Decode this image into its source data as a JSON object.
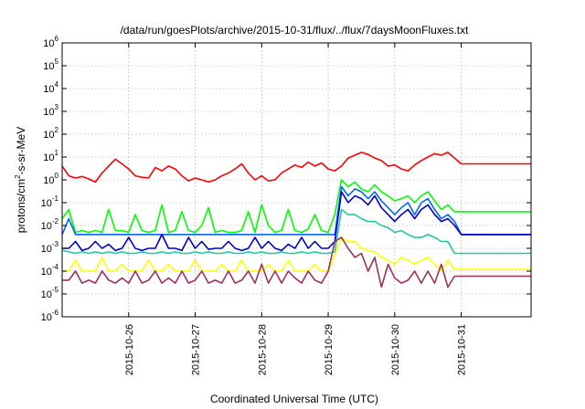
{
  "chart_data": {
    "type": "line",
    "title": "/data/run/goesPlots/archive/2015-10-31/flux/../flux/7daysMoonFluxes.txt",
    "xlabel": "Coordinated Universal Time (UTC)",
    "ylabel_parts": {
      "before": "protons/cm",
      "sup": "2",
      "after": "-s-sr-MeV"
    },
    "x_ticks": [
      "2015-10-26",
      "2015-10-27",
      "2015-10-28",
      "2015-10-29",
      "2015-10-30",
      "2015-10-31"
    ],
    "x_tick_positions": [
      1,
      2,
      3,
      4,
      5,
      6
    ],
    "xlim": [
      0.0,
      7.05
    ],
    "y_scale": "log",
    "ylim": [
      1e-06,
      1000000.0
    ],
    "y_ticks": [
      {
        "base": "10",
        "exp": "-6"
      },
      {
        "base": "10",
        "exp": "-5"
      },
      {
        "base": "10",
        "exp": "-4"
      },
      {
        "base": "10",
        "exp": "-3"
      },
      {
        "base": "10",
        "exp": "-2"
      },
      {
        "base": "10",
        "exp": "-1"
      },
      {
        "base": "10",
        "exp": "0"
      },
      {
        "base": "10",
        "exp": "1"
      },
      {
        "base": "10",
        "exp": "2"
      },
      {
        "base": "10",
        "exp": "3"
      },
      {
        "base": "10",
        "exp": "4"
      },
      {
        "base": "10",
        "exp": "5"
      },
      {
        "base": "10",
        "exp": "6"
      }
    ],
    "grid": true,
    "series": [
      {
        "color": "#ff0000",
        "x": [
          0.0,
          0.1,
          0.2,
          0.3,
          0.4,
          0.5,
          0.6,
          0.7,
          0.8,
          0.9,
          1.0,
          1.1,
          1.2,
          1.3,
          1.4,
          1.5,
          1.6,
          1.7,
          1.8,
          1.9,
          2.0,
          2.1,
          2.2,
          2.3,
          2.4,
          2.5,
          2.6,
          2.7,
          2.8,
          2.9,
          3.0,
          3.1,
          3.2,
          3.3,
          3.4,
          3.5,
          3.6,
          3.7,
          3.8,
          3.9,
          4.0,
          4.1,
          4.2,
          4.3,
          4.4,
          4.5,
          4.6,
          4.7,
          4.8,
          4.9,
          5.0,
          5.1,
          5.2,
          5.3,
          5.4,
          5.5,
          5.6,
          5.7,
          5.8,
          5.9,
          6.0,
          7.05
        ],
        "y": [
          4.0,
          1.5,
          1.2,
          1.4,
          1.1,
          0.8,
          2.0,
          4.0,
          8.0,
          5.0,
          3.0,
          1.5,
          1.3,
          1.2,
          3.5,
          2.5,
          4.0,
          3.0,
          1.5,
          0.9,
          1.2,
          1.0,
          0.8,
          1.0,
          1.5,
          2.0,
          3.0,
          5.0,
          2.0,
          1.0,
          1.5,
          0.9,
          1.0,
          2.0,
          3.0,
          4.5,
          3.5,
          6.0,
          4.0,
          5.5,
          3.0,
          2.5,
          4.0,
          9.0,
          12.0,
          16.0,
          13.0,
          9.0,
          7.0,
          4.0,
          4.5,
          3.0,
          2.5,
          4.5,
          7.0,
          10.0,
          14.0,
          12.0,
          16.0,
          9.0,
          5.0,
          5.0
        ]
      },
      {
        "color": "#00ff00",
        "x": [
          0.0,
          0.1,
          0.2,
          0.3,
          0.4,
          0.5,
          0.6,
          0.7,
          0.8,
          0.9,
          1.0,
          1.1,
          1.2,
          1.3,
          1.4,
          1.5,
          1.6,
          1.7,
          1.8,
          1.9,
          2.0,
          2.1,
          2.2,
          2.3,
          2.4,
          2.5,
          2.6,
          2.7,
          2.8,
          2.9,
          3.0,
          3.1,
          3.2,
          3.3,
          3.4,
          3.5,
          3.6,
          3.7,
          3.8,
          3.9,
          4.0,
          4.1,
          4.2,
          4.3,
          4.4,
          4.5,
          4.6,
          4.7,
          4.8,
          4.9,
          5.0,
          5.1,
          5.2,
          5.3,
          5.4,
          5.5,
          5.6,
          5.7,
          5.8,
          5.9,
          6.0,
          7.05
        ],
        "y": [
          0.02,
          0.05,
          0.005,
          0.006,
          0.005,
          0.006,
          0.005,
          0.05,
          0.006,
          0.006,
          0.005,
          0.03,
          0.006,
          0.005,
          0.006,
          0.08,
          0.005,
          0.006,
          0.04,
          0.006,
          0.005,
          0.01,
          0.06,
          0.005,
          0.006,
          0.005,
          0.005,
          0.006,
          0.04,
          0.005,
          0.08,
          0.01,
          0.005,
          0.006,
          0.05,
          0.006,
          0.005,
          0.007,
          0.03,
          0.006,
          0.005,
          0.03,
          1.0,
          0.5,
          0.8,
          0.4,
          0.3,
          0.6,
          0.3,
          0.2,
          0.12,
          0.15,
          0.2,
          0.1,
          0.2,
          0.3,
          0.12,
          0.05,
          0.08,
          0.04,
          0.04,
          0.04
        ]
      },
      {
        "color": "#0066ff",
        "x": [
          0.0,
          0.1,
          0.2,
          0.3,
          0.4,
          0.5,
          0.6,
          0.7,
          0.8,
          0.9,
          1.0,
          1.1,
          1.2,
          1.3,
          1.4,
          1.5,
          1.6,
          1.7,
          1.8,
          1.9,
          2.0,
          2.1,
          2.2,
          2.3,
          2.4,
          2.5,
          2.6,
          2.7,
          2.8,
          2.9,
          3.0,
          3.1,
          3.2,
          3.3,
          3.4,
          3.5,
          3.6,
          3.7,
          3.8,
          3.9,
          4.0,
          4.1,
          4.2,
          4.3,
          4.4,
          4.5,
          4.6,
          4.7,
          4.8,
          4.9,
          5.0,
          5.1,
          5.2,
          5.3,
          5.4,
          5.5,
          5.6,
          5.7,
          5.8,
          5.9,
          6.0,
          7.05
        ],
        "y": [
          0.004,
          0.02,
          0.004,
          0.004,
          0.004,
          0.004,
          0.004,
          0.004,
          0.004,
          0.004,
          0.004,
          0.004,
          0.004,
          0.004,
          0.004,
          0.004,
          0.004,
          0.004,
          0.004,
          0.004,
          0.004,
          0.004,
          0.004,
          0.004,
          0.004,
          0.004,
          0.004,
          0.004,
          0.004,
          0.004,
          0.004,
          0.004,
          0.004,
          0.004,
          0.004,
          0.004,
          0.004,
          0.004,
          0.004,
          0.004,
          0.004,
          0.004,
          0.5,
          0.2,
          0.4,
          0.3,
          0.15,
          0.3,
          0.12,
          0.06,
          0.03,
          0.06,
          0.1,
          0.03,
          0.1,
          0.15,
          0.05,
          0.02,
          0.03,
          0.015,
          0.004,
          0.004
        ]
      },
      {
        "color": "#0000cc",
        "x": [
          0.0,
          0.1,
          0.2,
          0.3,
          0.4,
          0.5,
          0.6,
          0.7,
          0.8,
          0.9,
          1.0,
          1.1,
          1.2,
          1.3,
          1.4,
          1.5,
          1.6,
          1.7,
          1.8,
          1.9,
          2.0,
          2.1,
          2.2,
          2.3,
          2.4,
          2.5,
          2.6,
          2.7,
          2.8,
          2.9,
          3.0,
          3.1,
          3.2,
          3.3,
          3.4,
          3.5,
          3.6,
          3.7,
          3.8,
          3.9,
          4.0,
          4.1,
          4.2,
          4.3,
          4.4,
          4.5,
          4.6,
          4.7,
          4.8,
          4.9,
          5.0,
          5.1,
          5.2,
          5.3,
          5.4,
          5.5,
          5.6,
          5.7,
          5.8,
          5.9,
          6.0,
          7.05
        ],
        "y": [
          0.001,
          0.001,
          0.002,
          0.0008,
          0.001,
          0.002,
          0.001,
          0.0015,
          0.0008,
          0.001,
          0.003,
          0.001,
          0.0008,
          0.001,
          0.001,
          0.004,
          0.001,
          0.001,
          0.0008,
          0.003,
          0.001,
          0.002,
          0.0009,
          0.001,
          0.001,
          0.002,
          0.001,
          0.0008,
          0.001,
          0.003,
          0.001,
          0.002,
          0.001,
          0.0008,
          0.0015,
          0.001,
          0.003,
          0.001,
          0.002,
          0.001,
          0.001,
          0.002,
          0.3,
          0.1,
          0.2,
          0.15,
          0.08,
          0.2,
          0.06,
          0.03,
          0.015,
          0.03,
          0.05,
          0.02,
          0.05,
          0.08,
          0.03,
          0.015,
          0.02,
          0.01,
          0.004,
          0.004
        ]
      },
      {
        "color": "#20c8a0",
        "x": [
          0.0,
          0.1,
          0.2,
          0.3,
          0.4,
          0.5,
          0.6,
          0.7,
          0.8,
          0.9,
          1.0,
          1.1,
          1.2,
          1.3,
          1.4,
          1.5,
          1.6,
          1.7,
          1.8,
          1.9,
          2.0,
          2.1,
          2.2,
          2.3,
          2.4,
          2.5,
          2.6,
          2.7,
          2.8,
          2.9,
          3.0,
          3.1,
          3.2,
          3.3,
          3.4,
          3.5,
          3.6,
          3.7,
          3.8,
          3.9,
          4.0,
          4.1,
          4.2,
          4.3,
          4.4,
          4.5,
          4.6,
          4.7,
          4.8,
          4.9,
          5.0,
          5.1,
          5.2,
          5.3,
          5.4,
          5.5,
          5.6,
          5.7,
          5.8,
          5.9,
          6.0,
          7.05
        ],
        "y": [
          0.0008,
          0.0007,
          0.0006,
          0.0007,
          0.0006,
          0.0007,
          0.0006,
          0.0007,
          0.0006,
          0.0007,
          0.0006,
          0.0006,
          0.0007,
          0.0006,
          0.0006,
          0.0007,
          0.0006,
          0.0007,
          0.0006,
          0.0006,
          0.0007,
          0.0006,
          0.0007,
          0.0006,
          0.0006,
          0.0007,
          0.0006,
          0.0006,
          0.0007,
          0.0006,
          0.0007,
          0.0006,
          0.0006,
          0.0007,
          0.0006,
          0.0006,
          0.0007,
          0.0006,
          0.0007,
          0.0006,
          0.0006,
          0.0007,
          0.05,
          0.03,
          0.03,
          0.02,
          0.015,
          0.015,
          0.01,
          0.008,
          0.005,
          0.006,
          0.004,
          0.003,
          0.003,
          0.004,
          0.003,
          0.002,
          0.002,
          0.0006,
          0.0006,
          0.0006
        ]
      },
      {
        "color": "#ffff00",
        "x": [
          0.0,
          0.1,
          0.2,
          0.3,
          0.4,
          0.5,
          0.6,
          0.7,
          0.8,
          0.9,
          1.0,
          1.1,
          1.2,
          1.3,
          1.4,
          1.5,
          1.6,
          1.7,
          1.8,
          1.9,
          2.0,
          2.1,
          2.2,
          2.3,
          2.4,
          2.5,
          2.6,
          2.7,
          2.8,
          2.9,
          3.0,
          3.1,
          3.2,
          3.3,
          3.4,
          3.5,
          3.6,
          3.7,
          3.8,
          3.9,
          4.0,
          4.1,
          4.2,
          4.3,
          4.4,
          4.5,
          4.6,
          4.7,
          4.8,
          4.9,
          5.0,
          5.1,
          5.2,
          5.3,
          5.4,
          5.5,
          5.6,
          5.7,
          5.8,
          5.9,
          6.0,
          7.05
        ],
        "y": [
          0.0001,
          0.0001,
          0.0003,
          0.0001,
          0.0001,
          0.0001,
          0.0004,
          0.0001,
          0.0001,
          0.0002,
          0.0001,
          0.0001,
          0.0001,
          0.0003,
          0.0001,
          0.0001,
          0.0002,
          0.0001,
          0.0001,
          0.0001,
          0.0003,
          0.0001,
          0.0001,
          0.0001,
          0.0002,
          0.0001,
          0.0001,
          0.0003,
          0.0001,
          0.0001,
          0.0001,
          0.0002,
          0.0001,
          0.0001,
          0.0003,
          0.0001,
          0.0001,
          0.0001,
          0.0002,
          0.0001,
          0.0001,
          0.0005,
          0.003,
          0.002,
          0.002,
          0.001,
          0.0008,
          0.0007,
          0.0004,
          0.0003,
          0.0002,
          0.0004,
          0.0003,
          0.0002,
          0.0003,
          0.0004,
          0.0002,
          0.0001,
          0.0003,
          0.00012,
          0.00012,
          0.00012
        ]
      },
      {
        "color": "#a0305a",
        "x": [
          0.0,
          0.1,
          0.2,
          0.3,
          0.4,
          0.5,
          0.6,
          0.7,
          0.8,
          0.9,
          1.0,
          1.1,
          1.2,
          1.3,
          1.4,
          1.5,
          1.6,
          1.7,
          1.8,
          1.9,
          2.0,
          2.1,
          2.2,
          2.3,
          2.4,
          2.5,
          2.6,
          2.7,
          2.8,
          2.9,
          3.0,
          3.1,
          3.2,
          3.3,
          3.4,
          3.5,
          3.6,
          3.7,
          3.8,
          3.9,
          4.0,
          4.1,
          4.2,
          4.3,
          4.4,
          4.5,
          4.6,
          4.7,
          4.8,
          4.9,
          5.0,
          5.1,
          5.2,
          5.3,
          5.4,
          5.5,
          5.6,
          5.7,
          5.8,
          5.9,
          6.0,
          7.05
        ],
        "y": [
          4e-05,
          4e-05,
          0.0001,
          3e-05,
          4e-05,
          3e-05,
          0.0001,
          4e-05,
          3e-05,
          5e-05,
          3e-05,
          0.0001,
          3e-05,
          4e-05,
          0.0001,
          3e-05,
          5e-05,
          3e-05,
          0.0001,
          3e-05,
          4e-05,
          0.0001,
          3e-05,
          4e-05,
          3e-05,
          0.0001,
          3e-05,
          4e-05,
          0.0001,
          3e-05,
          0.0002,
          3e-05,
          0.0001,
          3e-05,
          0.0001,
          5e-05,
          3e-05,
          0.0001,
          4e-05,
          3e-05,
          0.0001,
          0.002,
          0.003,
          0.001,
          0.0004,
          0.0006,
          0.0001,
          0.0004,
          2e-05,
          0.0002,
          5e-05,
          3e-05,
          4e-05,
          0.0001,
          3e-05,
          0.0001,
          3e-05,
          0.0002,
          2e-05,
          6e-05,
          6e-05,
          6e-05
        ]
      }
    ]
  }
}
